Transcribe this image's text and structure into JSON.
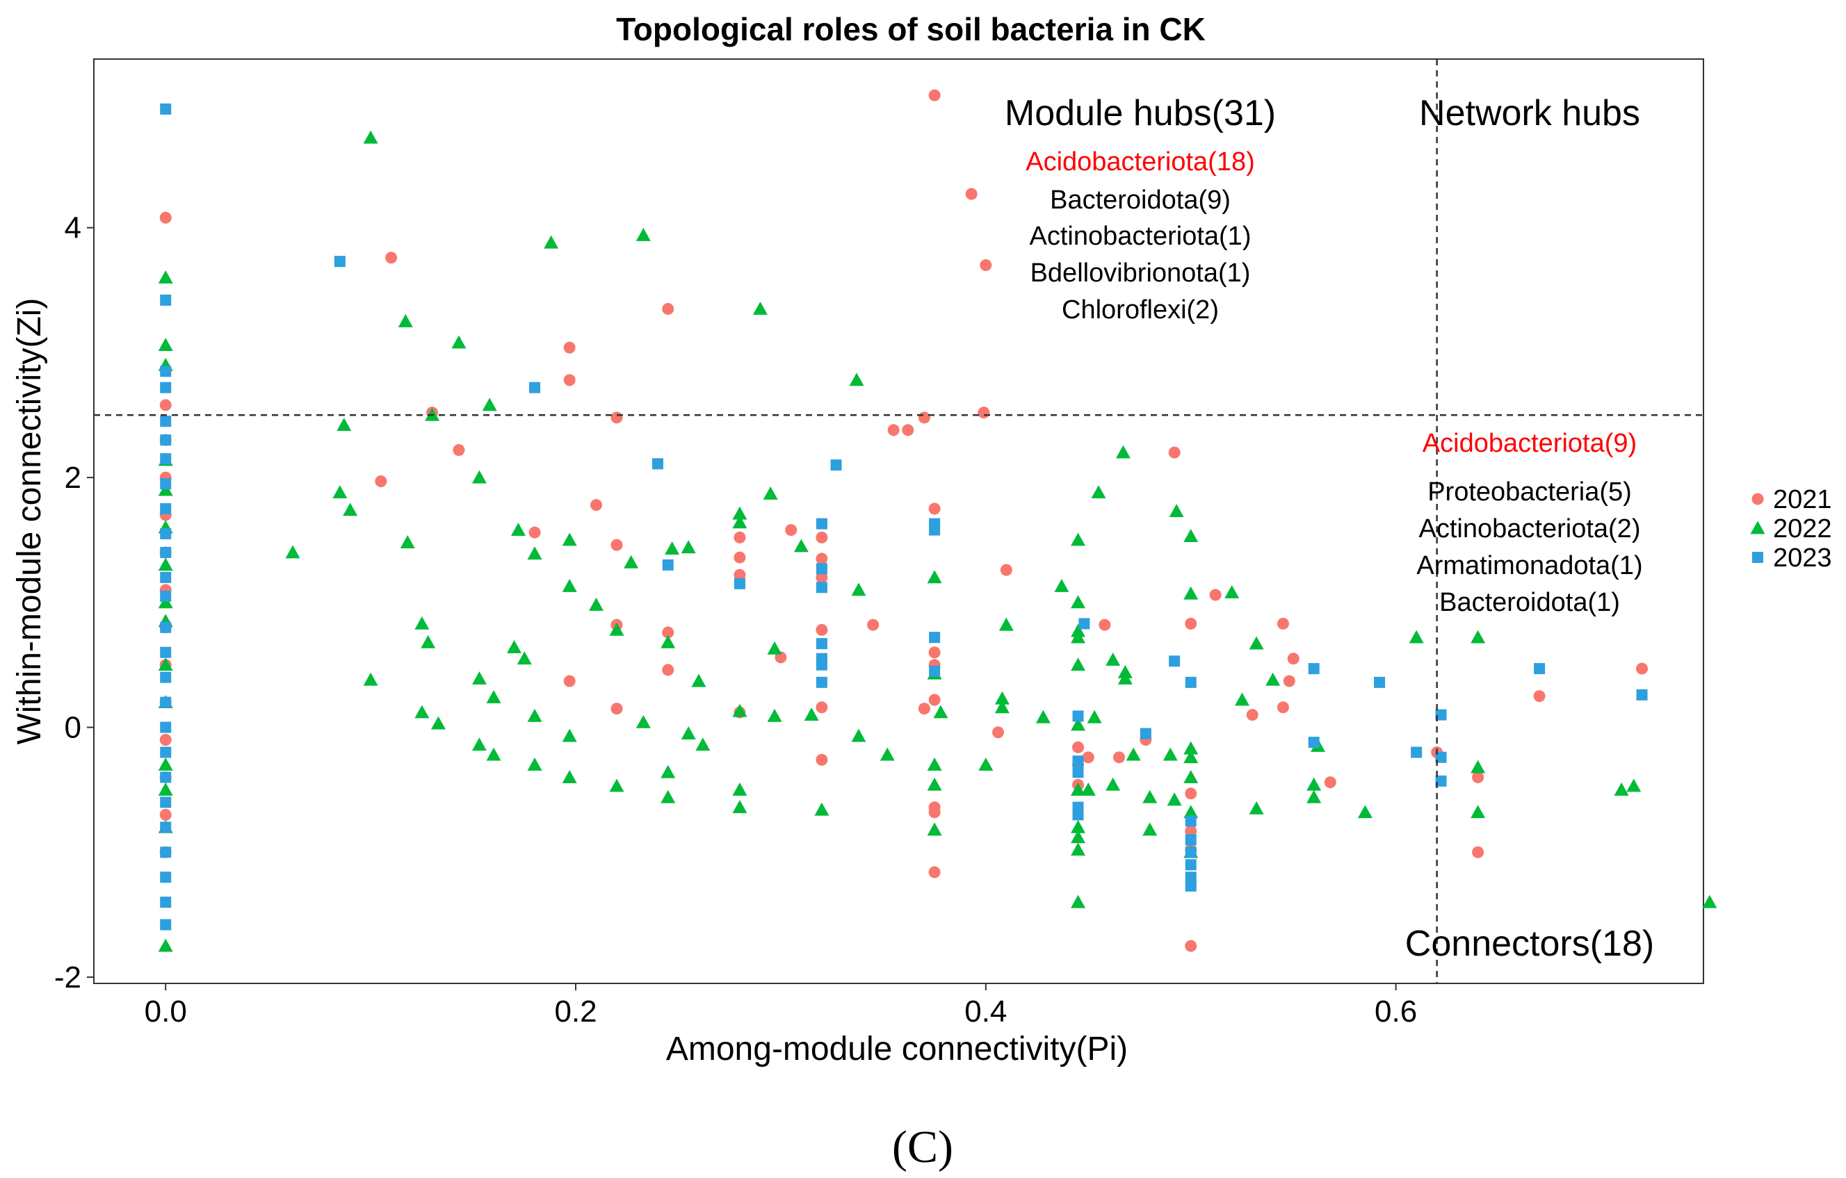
{
  "chart_data": {
    "type": "scatter",
    "title": "Topological roles of soil bacteria in CK",
    "xlabel": "Among-module connectivity(Pi)",
    "ylabel": "Within-module connectivity(Zi)",
    "xlim": [
      -0.035,
      0.75
    ],
    "ylim": [
      -2.05,
      5.35
    ],
    "x_ticks": [
      0.0,
      0.2,
      0.4,
      0.6
    ],
    "x_tick_labels": [
      "0.0",
      "0.2",
      "0.4",
      "0.6"
    ],
    "y_ticks": [
      -2,
      0,
      2,
      4
    ],
    "y_tick_labels": [
      "-2",
      "0",
      "2",
      "4"
    ],
    "thresholds": {
      "pi": 0.62,
      "zi": 2.5
    },
    "grid": false,
    "legend_position": "right",
    "panel_label": "(C)",
    "annotations": {
      "module_hubs": {
        "heading": "Module hubs(31)",
        "highlight": "Acidobacteriota(18)",
        "items": [
          "Bacteroidota(9)",
          "Actinobacteriota(1)",
          "Bdellovibrionota(1)",
          "Chloroflexi(2)"
        ]
      },
      "network_hubs": {
        "heading": "Network hubs"
      },
      "connectors": {
        "heading": "Connectors(18)",
        "highlight": "Acidobacteriota(9)",
        "items": [
          "Proteobacteria(5)",
          "Actinobacteriota(2)",
          "Armatimonadota(1)",
          "Bacteroidota(1)"
        ]
      }
    },
    "series": [
      {
        "name": "2021",
        "marker": "circle",
        "color": "#F8766D",
        "points": [
          [
            0,
            4.08
          ],
          [
            0,
            2.58
          ],
          [
            0,
            2.3
          ],
          [
            0,
            2.0
          ],
          [
            0,
            1.7
          ],
          [
            0,
            1.4
          ],
          [
            0,
            1.1
          ],
          [
            0,
            0.8
          ],
          [
            0,
            0.5
          ],
          [
            0,
            0.2
          ],
          [
            0,
            -0.1
          ],
          [
            0,
            -0.4
          ],
          [
            0,
            -0.7
          ],
          [
            0,
            -1.0
          ],
          [
            0.375,
            5.06
          ],
          [
            0.393,
            4.27
          ],
          [
            0.4,
            3.7
          ],
          [
            0.399,
            2.52
          ],
          [
            0.37,
            2.48
          ],
          [
            0.362,
            2.38
          ],
          [
            0.355,
            2.38
          ],
          [
            0.11,
            3.76
          ],
          [
            0.245,
            3.35
          ],
          [
            0.197,
            3.04
          ],
          [
            0.197,
            2.78
          ],
          [
            0.22,
            2.48
          ],
          [
            0.13,
            2.52
          ],
          [
            0.143,
            2.22
          ],
          [
            0.105,
            1.97
          ],
          [
            0.21,
            1.78
          ],
          [
            0.18,
            1.56
          ],
          [
            0.22,
            1.46
          ],
          [
            0.305,
            1.58
          ],
          [
            0.32,
            1.52
          ],
          [
            0.28,
            1.52
          ],
          [
            0.28,
            1.36
          ],
          [
            0.32,
            1.35
          ],
          [
            0.32,
            1.2
          ],
          [
            0.28,
            1.22
          ],
          [
            0.375,
            1.75
          ],
          [
            0.41,
            1.26
          ],
          [
            0.345,
            0.82
          ],
          [
            0.22,
            0.82
          ],
          [
            0.245,
            0.76
          ],
          [
            0.32,
            0.78
          ],
          [
            0.3,
            0.56
          ],
          [
            0.245,
            0.46
          ],
          [
            0.197,
            0.37
          ],
          [
            0.22,
            0.15
          ],
          [
            0.32,
            0.16
          ],
          [
            0.32,
            -0.26
          ],
          [
            0.28,
            0.12
          ],
          [
            0.375,
            0.6
          ],
          [
            0.375,
            0.5
          ],
          [
            0.375,
            0.22
          ],
          [
            0.37,
            0.15
          ],
          [
            0.375,
            -0.64
          ],
          [
            0.375,
            -0.68
          ],
          [
            0.375,
            -1.16
          ],
          [
            0.406,
            -0.04
          ],
          [
            0.445,
            -0.16
          ],
          [
            0.445,
            -0.3
          ],
          [
            0.445,
            -0.46
          ],
          [
            0.45,
            -0.24
          ],
          [
            0.465,
            -0.24
          ],
          [
            0.458,
            0.82
          ],
          [
            0.478,
            -0.1
          ],
          [
            0.5,
            0.83
          ],
          [
            0.512,
            1.06
          ],
          [
            0.5,
            -0.53
          ],
          [
            0.5,
            -0.83
          ],
          [
            0.5,
            -0.98
          ],
          [
            0.5,
            -1.75
          ],
          [
            0.492,
            2.2
          ],
          [
            0.545,
            0.83
          ],
          [
            0.55,
            0.55
          ],
          [
            0.548,
            0.37
          ],
          [
            0.545,
            0.16
          ],
          [
            0.53,
            0.1
          ],
          [
            0.568,
            -0.44
          ],
          [
            0.62,
            -0.2
          ],
          [
            0.64,
            -0.4
          ],
          [
            0.64,
            -1.0
          ],
          [
            0.67,
            0.25
          ],
          [
            0.72,
            0.47
          ]
        ]
      },
      {
        "name": "2022",
        "marker": "triangle",
        "color": "#00BA38",
        "points": [
          [
            0,
            3.6
          ],
          [
            0,
            3.06
          ],
          [
            0,
            2.9
          ],
          [
            0,
            2.14
          ],
          [
            0,
            1.9
          ],
          [
            0,
            1.6
          ],
          [
            0,
            1.3
          ],
          [
            0,
            1.0
          ],
          [
            0,
            0.85
          ],
          [
            0,
            0.5
          ],
          [
            0,
            0.2
          ],
          [
            0,
            -0.3
          ],
          [
            0,
            -0.5
          ],
          [
            0,
            -0.8
          ],
          [
            0,
            -1.75
          ],
          [
            0.1,
            4.72
          ],
          [
            0.188,
            3.88
          ],
          [
            0.233,
            3.94
          ],
          [
            0.29,
            3.35
          ],
          [
            0.117,
            3.25
          ],
          [
            0.143,
            3.08
          ],
          [
            0.158,
            2.58
          ],
          [
            0.13,
            2.5
          ],
          [
            0.087,
            2.42
          ],
          [
            0.337,
            2.78
          ],
          [
            0.153,
            2.0
          ],
          [
            0.085,
            1.88
          ],
          [
            0.09,
            1.74
          ],
          [
            0.062,
            1.4
          ],
          [
            0.118,
            1.48
          ],
          [
            0.172,
            1.58
          ],
          [
            0.18,
            1.39
          ],
          [
            0.197,
            1.5
          ],
          [
            0.197,
            1.13
          ],
          [
            0.21,
            0.98
          ],
          [
            0.22,
            0.78
          ],
          [
            0.227,
            1.32
          ],
          [
            0.247,
            1.43
          ],
          [
            0.255,
            1.44
          ],
          [
            0.245,
            0.68
          ],
          [
            0.28,
            1.71
          ],
          [
            0.28,
            1.64
          ],
          [
            0.295,
            1.87
          ],
          [
            0.31,
            1.45
          ],
          [
            0.297,
            0.63
          ],
          [
            0.26,
            0.37
          ],
          [
            0.28,
            0.13
          ],
          [
            0.297,
            0.09
          ],
          [
            0.315,
            0.1
          ],
          [
            0.233,
            0.04
          ],
          [
            0.255,
            -0.05
          ],
          [
            0.262,
            -0.14
          ],
          [
            0.338,
            1.1
          ],
          [
            0.338,
            -0.07
          ],
          [
            0.352,
            -0.22
          ],
          [
            0.28,
            -0.5
          ],
          [
            0.28,
            -0.64
          ],
          [
            0.32,
            -0.66
          ],
          [
            0.245,
            -0.36
          ],
          [
            0.245,
            -0.56
          ],
          [
            0.22,
            -0.47
          ],
          [
            0.197,
            -0.4
          ],
          [
            0.197,
            -0.07
          ],
          [
            0.18,
            0.09
          ],
          [
            0.18,
            -0.3
          ],
          [
            0.175,
            0.55
          ],
          [
            0.17,
            0.64
          ],
          [
            0.16,
            0.24
          ],
          [
            0.16,
            -0.22
          ],
          [
            0.153,
            0.39
          ],
          [
            0.153,
            -0.14
          ],
          [
            0.133,
            0.03
          ],
          [
            0.128,
            0.68
          ],
          [
            0.125,
            0.12
          ],
          [
            0.125,
            0.83
          ],
          [
            0.1,
            0.38
          ],
          [
            0.375,
            1.2
          ],
          [
            0.375,
            0.43
          ],
          [
            0.378,
            0.12
          ],
          [
            0.375,
            -0.3
          ],
          [
            0.375,
            -0.46
          ],
          [
            0.375,
            -0.82
          ],
          [
            0.41,
            0.82
          ],
          [
            0.408,
            0.23
          ],
          [
            0.408,
            0.16
          ],
          [
            0.4,
            -0.3
          ],
          [
            0.428,
            0.08
          ],
          [
            0.437,
            1.13
          ],
          [
            0.445,
            1.5
          ],
          [
            0.445,
            1.0
          ],
          [
            0.445,
            0.77
          ],
          [
            0.445,
            0.72
          ],
          [
            0.445,
            0.5
          ],
          [
            0.445,
            0.02
          ],
          [
            0.445,
            -0.5
          ],
          [
            0.445,
            -0.8
          ],
          [
            0.445,
            -0.88
          ],
          [
            0.445,
            -0.98
          ],
          [
            0.445,
            -1.4
          ],
          [
            0.455,
            1.88
          ],
          [
            0.467,
            2.2
          ],
          [
            0.462,
            0.54
          ],
          [
            0.468,
            0.44
          ],
          [
            0.468,
            0.39
          ],
          [
            0.453,
            0.08
          ],
          [
            0.45,
            -0.5
          ],
          [
            0.462,
            -0.46
          ],
          [
            0.472,
            -0.22
          ],
          [
            0.48,
            -0.56
          ],
          [
            0.48,
            -0.82
          ],
          [
            0.49,
            -0.22
          ],
          [
            0.493,
            1.73
          ],
          [
            0.5,
            1.53
          ],
          [
            0.5,
            1.07
          ],
          [
            0.5,
            -0.17
          ],
          [
            0.5,
            -0.24
          ],
          [
            0.5,
            -0.4
          ],
          [
            0.5,
            -0.68
          ],
          [
            0.5,
            -1.0
          ],
          [
            0.492,
            -0.58
          ],
          [
            0.52,
            1.08
          ],
          [
            0.532,
            0.67
          ],
          [
            0.525,
            0.22
          ],
          [
            0.532,
            -0.65
          ],
          [
            0.54,
            0.38
          ],
          [
            0.56,
            -0.46
          ],
          [
            0.56,
            -0.56
          ],
          [
            0.562,
            -0.15
          ],
          [
            0.585,
            -0.68
          ],
          [
            0.61,
            0.72
          ],
          [
            0.64,
            0.72
          ],
          [
            0.64,
            -0.32
          ],
          [
            0.64,
            -0.68
          ],
          [
            0.71,
            -0.5
          ],
          [
            0.716,
            -0.47
          ],
          [
            0.753,
            -1.4
          ]
        ]
      },
      {
        "name": "2023",
        "marker": "square",
        "color": "#2E9FDF",
        "points": [
          [
            0,
            4.95
          ],
          [
            0,
            3.42
          ],
          [
            0,
            2.85
          ],
          [
            0,
            2.72
          ],
          [
            0,
            2.45
          ],
          [
            0,
            2.3
          ],
          [
            0,
            2.15
          ],
          [
            0,
            1.95
          ],
          [
            0,
            1.75
          ],
          [
            0,
            1.55
          ],
          [
            0,
            1.4
          ],
          [
            0,
            1.2
          ],
          [
            0,
            1.05
          ],
          [
            0,
            0.8
          ],
          [
            0,
            0.6
          ],
          [
            0,
            0.4
          ],
          [
            0,
            0.2
          ],
          [
            0,
            0.0
          ],
          [
            0,
            -0.2
          ],
          [
            0,
            -0.4
          ],
          [
            0,
            -0.6
          ],
          [
            0,
            -0.8
          ],
          [
            0,
            -1.0
          ],
          [
            0,
            -1.2
          ],
          [
            0,
            -1.4
          ],
          [
            0,
            -1.58
          ],
          [
            0.085,
            3.73
          ],
          [
            0.18,
            2.72
          ],
          [
            0.24,
            2.11
          ],
          [
            0.327,
            2.1
          ],
          [
            0.245,
            1.3
          ],
          [
            0.28,
            1.15
          ],
          [
            0.32,
            1.63
          ],
          [
            0.32,
            1.27
          ],
          [
            0.32,
            1.12
          ],
          [
            0.32,
            0.67
          ],
          [
            0.32,
            0.55
          ],
          [
            0.32,
            0.5
          ],
          [
            0.32,
            0.36
          ],
          [
            0.375,
            1.63
          ],
          [
            0.375,
            1.58
          ],
          [
            0.375,
            0.72
          ],
          [
            0.375,
            0.45
          ],
          [
            0.445,
            0.09
          ],
          [
            0.445,
            -0.27
          ],
          [
            0.445,
            -0.36
          ],
          [
            0.445,
            -0.64
          ],
          [
            0.445,
            -0.7
          ],
          [
            0.448,
            0.83
          ],
          [
            0.478,
            -0.05
          ],
          [
            0.492,
            0.53
          ],
          [
            0.5,
            0.36
          ],
          [
            0.5,
            -0.75
          ],
          [
            0.5,
            -0.9
          ],
          [
            0.5,
            -1.0
          ],
          [
            0.5,
            -1.1
          ],
          [
            0.5,
            -1.2
          ],
          [
            0.5,
            -1.27
          ],
          [
            0.56,
            0.47
          ],
          [
            0.56,
            -0.12
          ],
          [
            0.592,
            0.36
          ],
          [
            0.61,
            -0.2
          ],
          [
            0.622,
            0.1
          ],
          [
            0.622,
            -0.24
          ],
          [
            0.622,
            -0.43
          ],
          [
            0.67,
            0.47
          ],
          [
            0.72,
            0.26
          ]
        ]
      }
    ]
  }
}
